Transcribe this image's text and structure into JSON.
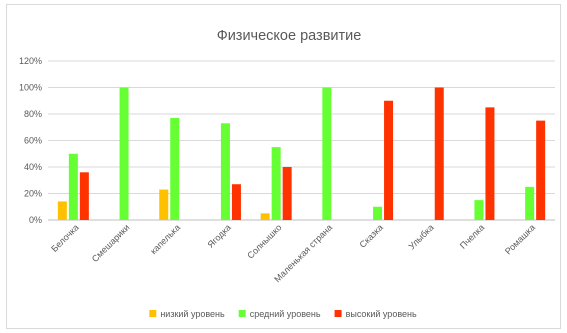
{
  "chart_data": {
    "type": "bar",
    "title": "Физическое развитие",
    "categories": [
      "Белочка",
      "Смешарики",
      "капелька",
      "Ягодка",
      "Солнышко",
      "Маленькая страна",
      "Сказка",
      "Улыбка",
      "Пчелка",
      "Ромашка"
    ],
    "series": [
      {
        "name": "низкий уровень",
        "color": "#ffc000",
        "values": [
          14,
          0,
          23,
          0,
          5,
          0,
          0,
          0,
          0,
          0
        ]
      },
      {
        "name": "средний уровень",
        "color": "#66ff33",
        "values": [
          50,
          100,
          77,
          73,
          55,
          100,
          10,
          0,
          15,
          25
        ]
      },
      {
        "name": "высокий уровень",
        "color": "#ff3300",
        "values": [
          36,
          0,
          0,
          27,
          40,
          0,
          90,
          100,
          85,
          75
        ]
      }
    ],
    "ylim": [
      0,
      120
    ],
    "yticks": [
      "0%",
      "20%",
      "40%",
      "60%",
      "80%",
      "100%",
      "120%"
    ],
    "grid": true,
    "legend_position": "bottom"
  }
}
